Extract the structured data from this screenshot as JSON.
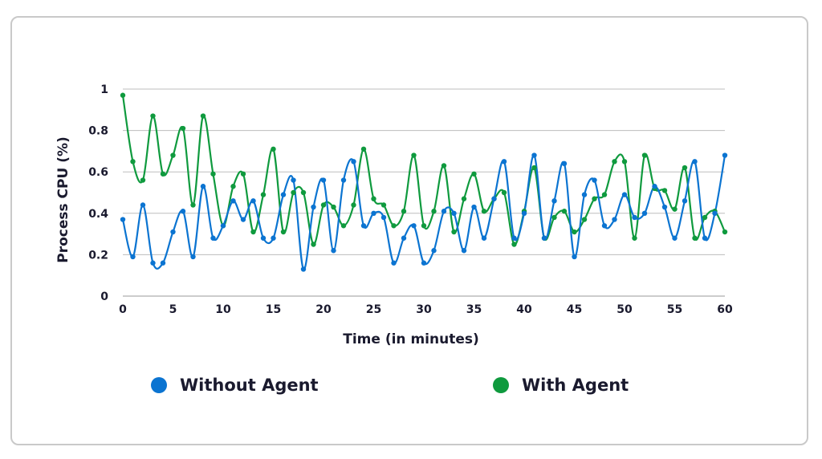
{
  "chart_data": {
    "type": "line",
    "title": "",
    "xlabel": "Time (in minutes)",
    "ylabel": "Process CPU (%)",
    "xlim": [
      0,
      60
    ],
    "ylim": [
      0,
      1
    ],
    "xticks": [
      0,
      5,
      10,
      15,
      20,
      25,
      30,
      35,
      40,
      45,
      50,
      55,
      60
    ],
    "yticks": [
      0,
      0.2,
      0.4,
      0.6,
      0.8,
      1
    ],
    "ytick_labels": [
      "0",
      "0.2",
      "0.4",
      "0.6",
      "0.8",
      "1"
    ],
    "grid": "horizontal",
    "legend_position": "bottom",
    "x": [
      0,
      1,
      2,
      3,
      4,
      5,
      6,
      7,
      8,
      9,
      10,
      11,
      12,
      13,
      14,
      15,
      16,
      17,
      18,
      19,
      20,
      21,
      22,
      23,
      24,
      25,
      26,
      27,
      28,
      29,
      30,
      31,
      32,
      33,
      34,
      35,
      36,
      37,
      38,
      39,
      40,
      41,
      42,
      43,
      44,
      45,
      46,
      47,
      48,
      49,
      50,
      51,
      52,
      53,
      54,
      55,
      56,
      57,
      58,
      59,
      60
    ],
    "series": [
      {
        "name": "Without Agent",
        "color": "#0b74d1",
        "values": [
          0.37,
          0.19,
          0.44,
          0.16,
          0.16,
          0.31,
          0.41,
          0.19,
          0.53,
          0.28,
          0.34,
          0.46,
          0.37,
          0.46,
          0.28,
          0.28,
          0.49,
          0.56,
          0.13,
          0.43,
          0.56,
          0.22,
          0.56,
          0.65,
          0.34,
          0.4,
          0.38,
          0.16,
          0.28,
          0.34,
          0.16,
          0.22,
          0.41,
          0.4,
          0.22,
          0.43,
          0.28,
          0.47,
          0.65,
          0.28,
          0.4,
          0.68,
          0.28,
          0.46,
          0.64,
          0.19,
          0.49,
          0.56,
          0.34,
          0.37,
          0.49,
          0.38,
          0.4,
          0.53,
          0.43,
          0.28,
          0.46,
          0.65,
          0.28,
          0.4,
          0.68
        ]
      },
      {
        "name": "With Agent",
        "color": "#0f9a3e",
        "values": [
          0.97,
          0.65,
          0.56,
          0.87,
          0.59,
          0.68,
          0.81,
          0.44,
          0.87,
          0.59,
          0.34,
          0.53,
          0.59,
          0.31,
          0.49,
          0.71,
          0.31,
          0.5,
          0.5,
          0.25,
          0.44,
          0.43,
          0.34,
          0.44,
          0.71,
          0.47,
          0.44,
          0.34,
          0.41,
          0.68,
          0.34,
          0.41,
          0.63,
          0.31,
          0.47,
          0.59,
          0.41,
          0.47,
          0.5,
          0.25,
          0.41,
          0.62,
          0.28,
          0.38,
          0.41,
          0.31,
          0.37,
          0.47,
          0.49,
          0.65,
          0.65,
          0.28,
          0.68,
          0.52,
          0.51,
          0.42,
          0.62,
          0.28,
          0.38,
          0.41,
          0.31
        ]
      }
    ]
  }
}
